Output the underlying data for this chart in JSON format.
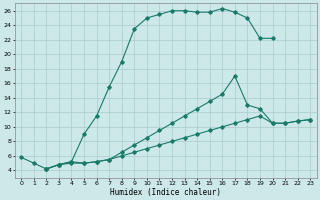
{
  "xlabel": "Humidex (Indice chaleur)",
  "bg_color": "#cce8e8",
  "grid_color": "#aacccc",
  "line_color": "#1a7a6a",
  "xlim": [
    -0.5,
    23.5
  ],
  "ylim": [
    3.0,
    27.0
  ],
  "xticks": [
    0,
    1,
    2,
    3,
    4,
    5,
    6,
    7,
    8,
    9,
    10,
    11,
    12,
    13,
    14,
    15,
    16,
    17,
    18,
    19,
    20,
    21,
    22,
    23
  ],
  "yticks": [
    4,
    6,
    8,
    10,
    12,
    14,
    16,
    18,
    20,
    22,
    24,
    26
  ],
  "curve1_x": [
    0,
    1,
    2,
    3,
    4,
    5,
    6,
    7,
    8,
    9,
    10,
    11,
    12,
    13,
    14,
    15,
    16,
    17,
    18,
    19,
    20
  ],
  "curve1_y": [
    5.8,
    5.0,
    4.2,
    4.8,
    5.2,
    9.0,
    11.5,
    15.5,
    19.0,
    23.5,
    25.0,
    25.5,
    26.0,
    26.0,
    25.8,
    25.8,
    26.3,
    25.8,
    25.0,
    22.2,
    22.2
  ],
  "curve2_x": [
    2,
    3,
    4,
    5,
    6,
    7,
    8,
    9,
    10,
    11,
    12,
    13,
    14,
    15,
    16,
    17,
    18,
    19,
    20,
    21,
    22,
    23
  ],
  "curve2_y": [
    4.2,
    4.8,
    5.2,
    5.0,
    5.2,
    5.5,
    6.5,
    7.5,
    8.5,
    9.5,
    10.5,
    11.5,
    12.5,
    13.5,
    14.5,
    17.0,
    13.0,
    12.5,
    10.5,
    10.5,
    10.8,
    11.0
  ],
  "curve3_x": [
    2,
    3,
    4,
    5,
    6,
    7,
    8,
    9,
    10,
    11,
    12,
    13,
    14,
    15,
    16,
    17,
    18,
    19,
    20,
    21,
    22,
    23
  ],
  "curve3_y": [
    4.2,
    4.8,
    5.0,
    5.0,
    5.2,
    5.5,
    6.0,
    6.5,
    7.0,
    7.5,
    8.0,
    8.5,
    9.0,
    9.5,
    10.0,
    10.5,
    11.0,
    11.5,
    10.5,
    10.5,
    10.8,
    11.0
  ]
}
